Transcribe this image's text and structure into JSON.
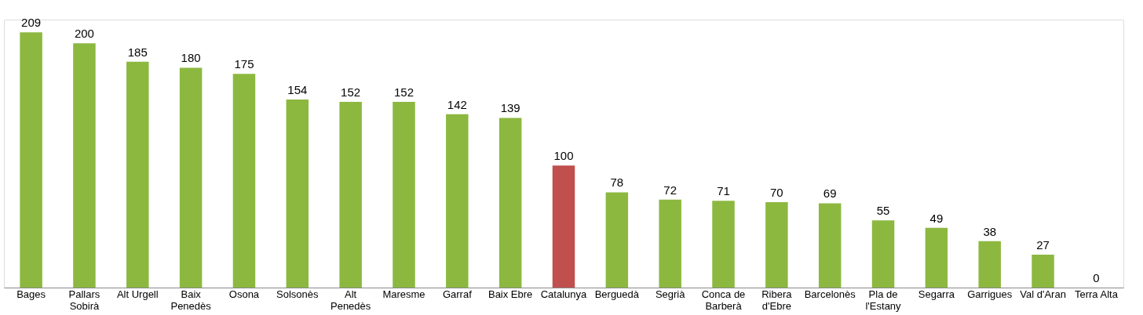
{
  "chart_data": {
    "type": "bar",
    "categories": [
      "Bages",
      "Pallars Sobirà",
      "Alt Urgell",
      "Baix Penedès",
      "Osona",
      "Solsonès",
      "Alt Penedès",
      "Maresme",
      "Garraf",
      "Baix Ebre",
      "Catalunya",
      "Berguedà",
      "Segrià",
      "Conca de Barberà",
      "Ribera d'Ebre",
      "Barcelonès",
      "Pla de l'Estany",
      "Segarra",
      "Garrigues",
      "Val d'Aran",
      "Terra Alta"
    ],
    "values": [
      209,
      200,
      185,
      180,
      175,
      154,
      152,
      152,
      142,
      139,
      100,
      78,
      72,
      71,
      70,
      69,
      55,
      49,
      38,
      27,
      0
    ],
    "colors": [
      "#8cb840",
      "#8cb840",
      "#8cb840",
      "#8cb840",
      "#8cb840",
      "#8cb840",
      "#8cb840",
      "#8cb840",
      "#8cb840",
      "#8cb840",
      "#c0504d",
      "#8cb840",
      "#8cb840",
      "#8cb840",
      "#8cb840",
      "#8cb840",
      "#8cb840",
      "#8cb840",
      "#8cb840",
      "#8cb840",
      "#8cb840"
    ],
    "data_labels": true
  }
}
